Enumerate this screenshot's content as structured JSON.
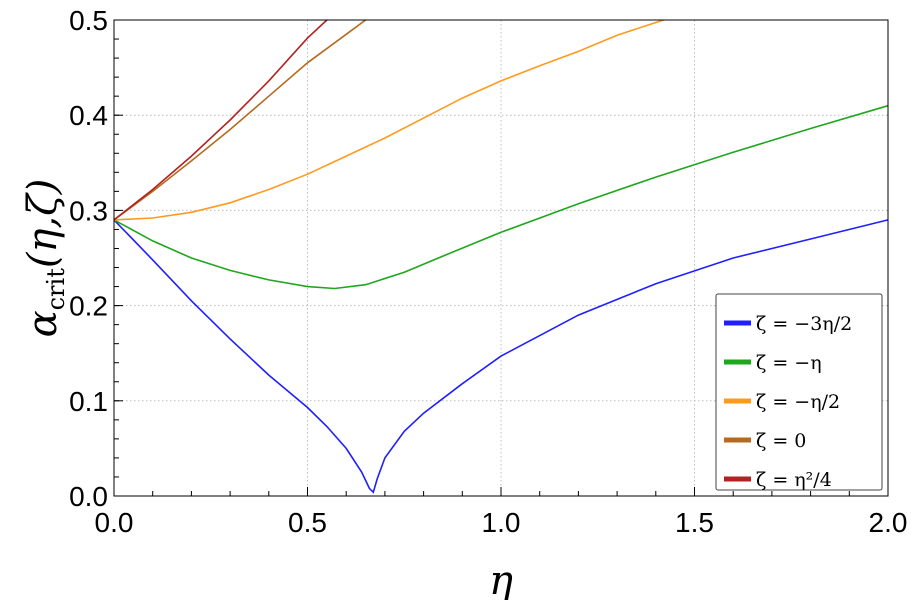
{
  "chart_data": {
    "type": "line",
    "title": "",
    "xlabel": "η",
    "ylabel_main": "α",
    "ylabel_sub": "crit",
    "ylabel_args": "(η,ζ)",
    "xlim": [
      0,
      2
    ],
    "ylim": [
      0,
      0.5
    ],
    "grid": true,
    "legend_position": "bottom-right",
    "x_ticks": [
      {
        "value": 0.0,
        "label": "0.0"
      },
      {
        "value": 0.5,
        "label": "0.5"
      },
      {
        "value": 1.0,
        "label": "1.0"
      },
      {
        "value": 1.5,
        "label": "1.5"
      },
      {
        "value": 2.0,
        "label": "2.0"
      }
    ],
    "y_ticks": [
      {
        "value": 0.0,
        "label": "0.0"
      },
      {
        "value": 0.1,
        "label": "0.1"
      },
      {
        "value": 0.2,
        "label": "0.2"
      },
      {
        "value": 0.3,
        "label": "0.3"
      },
      {
        "value": 0.4,
        "label": "0.4"
      },
      {
        "value": 0.5,
        "label": "0.5"
      }
    ],
    "series": [
      {
        "name": "ζ = −3η/2",
        "color": "#1f1fff",
        "points": [
          [
            0.0,
            0.29
          ],
          [
            0.1,
            0.248
          ],
          [
            0.2,
            0.205
          ],
          [
            0.3,
            0.165
          ],
          [
            0.4,
            0.127
          ],
          [
            0.5,
            0.093
          ],
          [
            0.55,
            0.073
          ],
          [
            0.6,
            0.05
          ],
          [
            0.64,
            0.025
          ],
          [
            0.66,
            0.008
          ],
          [
            0.67,
            0.004
          ],
          [
            0.68,
            0.018
          ],
          [
            0.7,
            0.04
          ],
          [
            0.75,
            0.068
          ],
          [
            0.8,
            0.087
          ],
          [
            0.9,
            0.118
          ],
          [
            1.0,
            0.147
          ],
          [
            1.2,
            0.19
          ],
          [
            1.4,
            0.223
          ],
          [
            1.6,
            0.25
          ],
          [
            1.8,
            0.27
          ],
          [
            2.0,
            0.29
          ]
        ]
      },
      {
        "name": "ζ = −η",
        "color": "#1fa61f",
        "points": [
          [
            0.0,
            0.29
          ],
          [
            0.1,
            0.268
          ],
          [
            0.2,
            0.25
          ],
          [
            0.3,
            0.237
          ],
          [
            0.4,
            0.227
          ],
          [
            0.5,
            0.22
          ],
          [
            0.57,
            0.218
          ],
          [
            0.65,
            0.222
          ],
          [
            0.75,
            0.235
          ],
          [
            0.85,
            0.252
          ],
          [
            1.0,
            0.277
          ],
          [
            1.2,
            0.307
          ],
          [
            1.4,
            0.335
          ],
          [
            1.6,
            0.361
          ],
          [
            1.8,
            0.386
          ],
          [
            2.0,
            0.41
          ]
        ]
      },
      {
        "name": "ζ = −η/2",
        "color": "#ff9a1f",
        "points": [
          [
            0.0,
            0.29
          ],
          [
            0.1,
            0.292
          ],
          [
            0.2,
            0.298
          ],
          [
            0.3,
            0.308
          ],
          [
            0.4,
            0.322
          ],
          [
            0.5,
            0.338
          ],
          [
            0.6,
            0.357
          ],
          [
            0.7,
            0.376
          ],
          [
            0.8,
            0.397
          ],
          [
            0.9,
            0.418
          ],
          [
            1.0,
            0.436
          ],
          [
            1.1,
            0.452
          ],
          [
            1.2,
            0.467
          ],
          [
            1.3,
            0.484
          ],
          [
            1.42,
            0.5
          ]
        ]
      },
      {
        "name": "ζ = 0",
        "color": "#b56a1f",
        "points": [
          [
            0.0,
            0.29
          ],
          [
            0.1,
            0.32
          ],
          [
            0.2,
            0.352
          ],
          [
            0.3,
            0.385
          ],
          [
            0.4,
            0.42
          ],
          [
            0.5,
            0.455
          ],
          [
            0.6,
            0.485
          ],
          [
            0.65,
            0.5
          ]
        ]
      },
      {
        "name": "ζ = η²/4",
        "color": "#b22222",
        "points": [
          [
            0.0,
            0.29
          ],
          [
            0.1,
            0.322
          ],
          [
            0.2,
            0.357
          ],
          [
            0.3,
            0.395
          ],
          [
            0.4,
            0.436
          ],
          [
            0.5,
            0.481
          ],
          [
            0.55,
            0.5
          ]
        ]
      }
    ]
  }
}
